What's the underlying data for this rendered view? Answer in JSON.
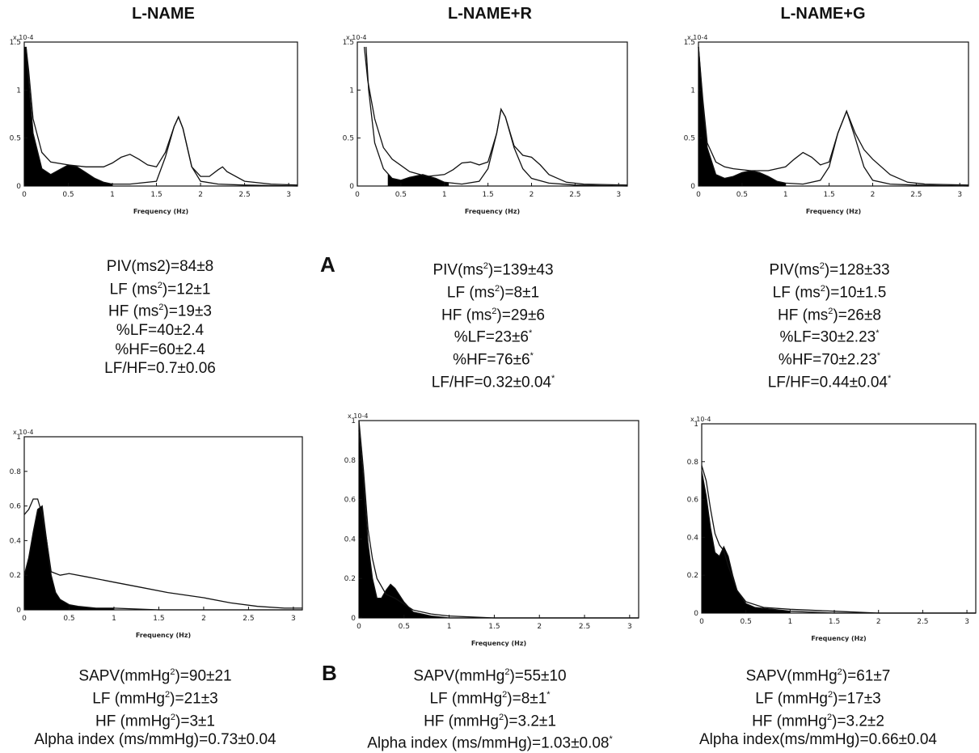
{
  "titles": [
    "L-NAME",
    "L-NAME+R",
    "L-NAME+G"
  ],
  "panel_labels": {
    "a": "A",
    "b": "B"
  },
  "stats_top": [
    [
      {
        "t": "PIV(ms2)=84±8"
      },
      {
        "t": "LF (ms",
        "s": "2",
        "e": ")=12±1"
      },
      {
        "t": "HF (ms",
        "s": "2",
        "e": ")=19±3"
      },
      {
        "t": "%LF=40±2.4"
      },
      {
        "t": "%HF=60±2.4"
      },
      {
        "t": "LF/HF=0.7±0.06"
      }
    ],
    [
      {
        "t": "PIV(ms",
        "s": "2",
        "e": ")=139±43"
      },
      {
        "t": "LF (ms",
        "s": "2",
        "e": ")=8±1"
      },
      {
        "t": "HF (ms",
        "s": "2",
        "e": ")=29±6"
      },
      {
        "t": "%LF=23±6",
        "e2": "*"
      },
      {
        "t": "%HF=76±6",
        "e2": "*"
      },
      {
        "t": "LF/HF=0.32±0.04",
        "e2": "*"
      }
    ],
    [
      {
        "t": "PIV(ms",
        "s": "2",
        "e": ")=128±33"
      },
      {
        "t": "LF (ms",
        "s": "2",
        "e": ")=10±1.5"
      },
      {
        "t": "HF (ms",
        "s": "2",
        "e": ")=26±8"
      },
      {
        "t": "%LF=30±2.23",
        "e2": "*"
      },
      {
        "t": "%HF=70±2.23",
        "e2": "*"
      },
      {
        "t": "LF/HF=0.44±0.04",
        "e2": "*"
      }
    ]
  ],
  "stats_bottom": [
    [
      {
        "t": "SAPV(mmHg",
        "s": "2",
        "e": ")=90±21"
      },
      {
        "t": "LF (mmHg",
        "s": "2",
        "e": ")=21±3"
      },
      {
        "t": "HF (mmHg",
        "s": "2",
        "e": ")=3±1"
      },
      {
        "t": "Alpha index (ms/mmHg)=0.73±0.04"
      }
    ],
    [
      {
        "t": "SAPV(mmHg",
        "s": "2",
        "e": ")=55±10"
      },
      {
        "t": "LF (mmHg",
        "s": "2",
        "e": ")=8±1",
        "e2": "*"
      },
      {
        "t": "HF (mmHg",
        "s": "2",
        "e": ")=3.2±1"
      },
      {
        "t": "Alpha index (ms/mmHg)=1.03±0.08",
        "e2": "*"
      }
    ],
    [
      {
        "t": "SAPV(mmHg",
        "s": "2",
        "e": ")=61±7"
      },
      {
        "t": "LF (mmHg",
        "s": "2",
        "e": ")=17±3"
      },
      {
        "t": "HF (mmHg",
        "s": "2",
        "e": ")=3.2±2"
      },
      {
        "t": "Alpha index(ms/mmHg)=0.66±0.04"
      }
    ]
  ],
  "chart_data": [
    {
      "type": "line",
      "row": "A",
      "xlabel": "Frequency (Hz)",
      "y_exponent": "x 10-4",
      "xlim": [
        0,
        3.1
      ],
      "ylim": [
        0,
        1.5
      ],
      "xticks": [
        "0",
        "0.5",
        "1",
        "1.5",
        "2",
        "2.5",
        "3"
      ],
      "yticks": [
        "0",
        "0.5",
        "1",
        "1.5"
      ],
      "series": [
        {
          "x": [
            0.02,
            0.05,
            0.1,
            0.2,
            0.3,
            0.5,
            0.7,
            0.9,
            1.0,
            1.1,
            1.2,
            1.3,
            1.4,
            1.5,
            1.6,
            1.7,
            1.75,
            1.8,
            1.9,
            2.0,
            2.1,
            2.2,
            2.25,
            2.3,
            2.5,
            2.8,
            3.1
          ],
          "y": [
            1.45,
            1.2,
            0.7,
            0.35,
            0.25,
            0.22,
            0.2,
            0.2,
            0.24,
            0.3,
            0.33,
            0.28,
            0.22,
            0.2,
            0.35,
            0.62,
            0.72,
            0.6,
            0.2,
            0.1,
            0.1,
            0.17,
            0.2,
            0.15,
            0.05,
            0.02,
            0.01
          ]
        },
        {
          "x": [
            0.02,
            0.05,
            0.1,
            0.2,
            0.3,
            0.4,
            0.5,
            0.6,
            0.7,
            0.8,
            0.9,
            1.0,
            1.2,
            1.5,
            1.6,
            1.7,
            1.75,
            1.8,
            1.9,
            2.0,
            2.2,
            2.5,
            3.1
          ],
          "y": [
            1.45,
            1.1,
            0.55,
            0.18,
            0.12,
            0.17,
            0.22,
            0.2,
            0.14,
            0.08,
            0.04,
            0.02,
            0.02,
            0.05,
            0.3,
            0.62,
            0.72,
            0.6,
            0.2,
            0.05,
            0.02,
            0.01,
            0.0
          ],
          "filled_range": [
            0.0,
            1.0
          ]
        }
      ]
    },
    {
      "type": "line",
      "row": "A",
      "xlabel": "Frequency (Hz)",
      "y_exponent": "x 10-4",
      "xlim": [
        0,
        3.1
      ],
      "ylim": [
        0,
        1.5
      ],
      "xticks": [
        "0",
        "0.5",
        "1",
        "1.5",
        "2",
        "2.5",
        "3"
      ],
      "yticks": [
        "0",
        "0.5",
        "1",
        "1.5"
      ],
      "series": [
        {
          "x": [
            0.08,
            0.12,
            0.2,
            0.3,
            0.4,
            0.6,
            0.8,
            1.0,
            1.1,
            1.2,
            1.3,
            1.4,
            1.5,
            1.6,
            1.65,
            1.7,
            1.8,
            1.9,
            2.0,
            2.1,
            2.2,
            2.4,
            2.6,
            3.1
          ],
          "y": [
            1.45,
            1.1,
            0.7,
            0.4,
            0.28,
            0.15,
            0.1,
            0.12,
            0.17,
            0.24,
            0.25,
            0.22,
            0.25,
            0.55,
            0.8,
            0.72,
            0.42,
            0.32,
            0.3,
            0.22,
            0.12,
            0.04,
            0.02,
            0.01
          ]
        },
        {
          "x": [
            0.1,
            0.13,
            0.2,
            0.3,
            0.4,
            0.5,
            0.6,
            0.75,
            0.9,
            1.0,
            1.2,
            1.4,
            1.5,
            1.6,
            1.65,
            1.7,
            1.8,
            1.9,
            2.0,
            2.2,
            2.5,
            3.1
          ],
          "y": [
            1.45,
            1.0,
            0.45,
            0.18,
            0.08,
            0.06,
            0.09,
            0.12,
            0.08,
            0.04,
            0.02,
            0.05,
            0.18,
            0.55,
            0.8,
            0.72,
            0.4,
            0.18,
            0.08,
            0.03,
            0.01,
            0.0
          ],
          "filled_range": [
            0.35,
            1.05
          ]
        }
      ]
    },
    {
      "type": "line",
      "row": "A",
      "xlabel": "Frequency (Hz)",
      "y_exponent": "x 10-4",
      "xlim": [
        0,
        3.1
      ],
      "ylim": [
        0,
        1.5
      ],
      "xticks": [
        "0",
        "0.5",
        "1",
        "1.5",
        "2",
        "2.5",
        "3"
      ],
      "yticks": [
        "0",
        "0.5",
        "1",
        "1.5"
      ],
      "series": [
        {
          "x": [
            0.0,
            0.05,
            0.1,
            0.2,
            0.3,
            0.4,
            0.6,
            0.8,
            1.0,
            1.1,
            1.2,
            1.3,
            1.4,
            1.5,
            1.6,
            1.7,
            1.8,
            1.9,
            2.0,
            2.2,
            2.4,
            2.6,
            3.1
          ],
          "y": [
            1.45,
            0.9,
            0.45,
            0.25,
            0.2,
            0.18,
            0.16,
            0.16,
            0.2,
            0.28,
            0.35,
            0.3,
            0.22,
            0.25,
            0.55,
            0.78,
            0.55,
            0.38,
            0.28,
            0.12,
            0.04,
            0.02,
            0.01
          ]
        },
        {
          "x": [
            0.0,
            0.05,
            0.1,
            0.2,
            0.3,
            0.4,
            0.5,
            0.6,
            0.7,
            0.8,
            0.9,
            1.0,
            1.2,
            1.4,
            1.5,
            1.6,
            1.7,
            1.8,
            1.9,
            2.0,
            2.2,
            2.5,
            3.1
          ],
          "y": [
            1.45,
            0.85,
            0.4,
            0.12,
            0.08,
            0.1,
            0.14,
            0.16,
            0.14,
            0.1,
            0.05,
            0.03,
            0.02,
            0.06,
            0.2,
            0.55,
            0.78,
            0.5,
            0.2,
            0.06,
            0.02,
            0.01,
            0.0
          ],
          "filled_range": [
            0.0,
            1.0
          ]
        }
      ]
    },
    {
      "type": "line",
      "row": "B",
      "xlabel": "Frequency (Hz)",
      "y_exponent": "x 10-4",
      "xlim": [
        0,
        3.1
      ],
      "ylim": [
        0,
        1.0
      ],
      "xticks": [
        "0",
        "0.5",
        "1",
        "1.5",
        "2",
        "2.5",
        "3"
      ],
      "yticks": [
        "0",
        "0.2",
        "0.4",
        "0.6",
        "0.8",
        "1"
      ],
      "series": [
        {
          "x": [
            0.0,
            0.05,
            0.1,
            0.15,
            0.2,
            0.25,
            0.3,
            0.4,
            0.5,
            0.7,
            1.0,
            1.3,
            1.6,
            2.0,
            2.3,
            2.6,
            2.9,
            3.1
          ],
          "y": [
            0.55,
            0.58,
            0.64,
            0.64,
            0.55,
            0.4,
            0.22,
            0.2,
            0.21,
            0.19,
            0.16,
            0.13,
            0.1,
            0.07,
            0.04,
            0.02,
            0.01,
            0.01
          ]
        },
        {
          "x": [
            0.0,
            0.05,
            0.1,
            0.15,
            0.2,
            0.25,
            0.3,
            0.35,
            0.4,
            0.5,
            0.6,
            0.8,
            1.0,
            1.5,
            2.0,
            3.1
          ],
          "y": [
            0.2,
            0.3,
            0.45,
            0.58,
            0.6,
            0.4,
            0.2,
            0.1,
            0.06,
            0.03,
            0.02,
            0.01,
            0.01,
            0.0,
            0.0,
            0.0
          ],
          "filled_range": [
            0.0,
            1.0
          ]
        }
      ]
    },
    {
      "type": "line",
      "row": "B",
      "xlabel": "Frequency (Hz)",
      "y_exponent": "x 10-4",
      "xlim": [
        0,
        3.1
      ],
      "ylim": [
        0,
        1.0
      ],
      "xticks": [
        "0",
        "0.5",
        "1",
        "1.5",
        "2",
        "2.5",
        "3"
      ],
      "yticks": [
        "0",
        "0.2",
        "0.4",
        "0.6",
        "0.8",
        "1"
      ],
      "series": [
        {
          "x": [
            0.0,
            0.05,
            0.1,
            0.15,
            0.2,
            0.3,
            0.4,
            0.5,
            0.6,
            0.8,
            1.0,
            1.5,
            3.1
          ],
          "y": [
            1.0,
            0.75,
            0.45,
            0.3,
            0.2,
            0.12,
            0.1,
            0.07,
            0.04,
            0.02,
            0.01,
            0.0,
            0.0
          ]
        },
        {
          "x": [
            0.0,
            0.05,
            0.1,
            0.15,
            0.2,
            0.25,
            0.3,
            0.35,
            0.4,
            0.5,
            0.6,
            0.8,
            1.0,
            1.5,
            3.1
          ],
          "y": [
            0.95,
            0.7,
            0.38,
            0.2,
            0.1,
            0.1,
            0.14,
            0.17,
            0.15,
            0.08,
            0.03,
            0.01,
            0.0,
            0.0,
            0.0
          ],
          "filled_range": [
            0.0,
            1.0
          ]
        }
      ]
    },
    {
      "type": "line",
      "row": "B",
      "xlabel": "Frequency (Hz)",
      "y_exponent": "x 10-4",
      "xlim": [
        0,
        3.1
      ],
      "ylim": [
        0,
        1.0
      ],
      "xticks": [
        "0",
        "0.5",
        "1",
        "1.5",
        "2",
        "2.5",
        "3"
      ],
      "yticks": [
        "0",
        "0.2",
        "0.4",
        "0.6",
        "0.8",
        "1"
      ],
      "series": [
        {
          "x": [
            0.0,
            0.05,
            0.1,
            0.15,
            0.2,
            0.25,
            0.3,
            0.4,
            0.5,
            0.7,
            1.0,
            1.5,
            2.0,
            3.1
          ],
          "y": [
            0.78,
            0.7,
            0.55,
            0.42,
            0.36,
            0.33,
            0.25,
            0.12,
            0.06,
            0.03,
            0.02,
            0.01,
            0.0,
            0.0
          ]
        },
        {
          "x": [
            0.0,
            0.05,
            0.1,
            0.15,
            0.2,
            0.25,
            0.3,
            0.35,
            0.4,
            0.5,
            0.6,
            0.8,
            1.0,
            1.5,
            3.1
          ],
          "y": [
            0.75,
            0.62,
            0.45,
            0.32,
            0.3,
            0.35,
            0.3,
            0.2,
            0.12,
            0.05,
            0.03,
            0.02,
            0.01,
            0.0,
            0.0
          ],
          "filled_range": [
            0.0,
            1.0
          ]
        }
      ]
    }
  ]
}
